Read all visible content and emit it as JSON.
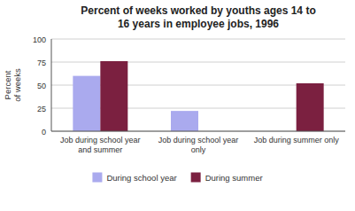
{
  "chart_data": {
    "type": "bar",
    "title": "Percent of weeks worked by youths ages 14 to\n16 years in employee jobs, 1996",
    "categories": [
      "Job during school year\nand summer",
      "Job during school year\nonly",
      "Job during summer only"
    ],
    "series": [
      {
        "name": "During school year",
        "color": "#aaaaee",
        "values": [
          60,
          22,
          0
        ]
      },
      {
        "name": "During summer",
        "color": "#7b2040",
        "values": [
          76,
          0,
          52
        ]
      }
    ],
    "ylabel": "Percent\nof weeks",
    "ylim": [
      0,
      100
    ],
    "yticks": [
      0,
      25,
      50,
      75,
      100
    ],
    "grid": true,
    "legend": "bottom"
  }
}
